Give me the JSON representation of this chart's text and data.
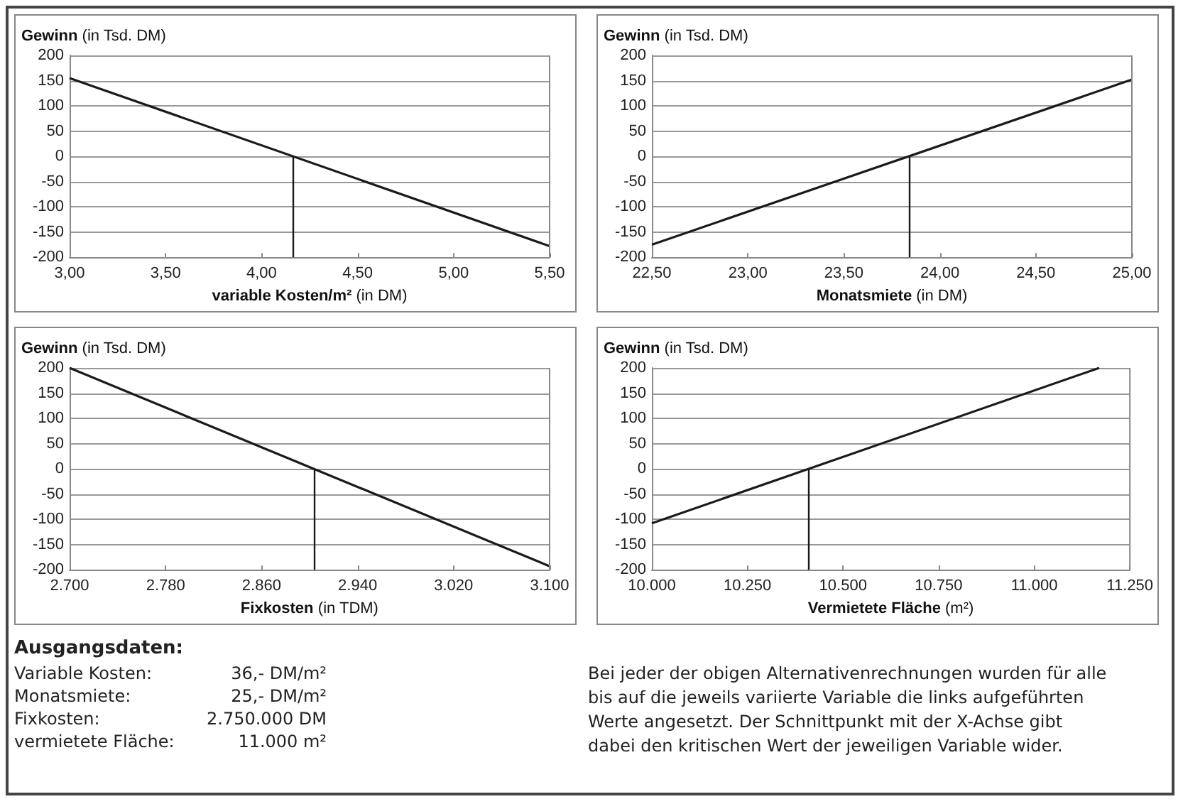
{
  "chart_data": [
    {
      "type": "line",
      "xlabel": "variable Kosten/m² (in DM)",
      "ylabel": "Gewinn (in Tsd. DM)",
      "x": [
        3.0,
        5.5
      ],
      "series": [
        {
          "color": "#1a1a1a",
          "values": [
            155,
            -178
          ]
        }
      ],
      "xlim": [
        3.0,
        5.5
      ],
      "xticks": [
        {
          "value": 3.0,
          "label": "3,00"
        },
        {
          "value": 3.5,
          "label": "3,50"
        },
        {
          "value": 4.0,
          "label": "4,00"
        },
        {
          "value": 4.5,
          "label": "4,50"
        },
        {
          "value": 5.0,
          "label": "5,00"
        },
        {
          "value": 5.5,
          "label": "5,50"
        }
      ],
      "ylim": [
        -200,
        200
      ],
      "yticks": [
        -200,
        -150,
        -100,
        -50,
        0,
        50,
        100,
        150,
        200
      ],
      "grid": "y",
      "marker": "none",
      "ref_lines": [
        {
          "axis": "x",
          "value": 4.16,
          "color": "#1a1a1a"
        }
      ]
    },
    {
      "type": "line",
      "xlabel": "Monatsmiete (in DM)",
      "ylabel": "Gewinn (in Tsd. DM)",
      "x": [
        22.5,
        25.0
      ],
      "series": [
        {
          "color": "#1a1a1a",
          "values": [
            -175,
            152
          ]
        }
      ],
      "xlim": [
        22.5,
        25.0
      ],
      "xticks": [
        {
          "value": 22.5,
          "label": "22,50"
        },
        {
          "value": 23.0,
          "label": "23,00"
        },
        {
          "value": 23.5,
          "label": "23,50"
        },
        {
          "value": 24.0,
          "label": "24,00"
        },
        {
          "value": 24.5,
          "label": "24,50"
        },
        {
          "value": 25.0,
          "label": "25,00"
        }
      ],
      "ylim": [
        -200,
        200
      ],
      "yticks": [
        -200,
        -150,
        -100,
        -50,
        0,
        50,
        100,
        150,
        200
      ],
      "grid": "y",
      "marker": "none",
      "ref_lines": [
        {
          "axis": "x",
          "value": 23.84,
          "color": "#1a1a1a"
        }
      ]
    },
    {
      "type": "line",
      "xlabel": "Fixkosten (in TDM)",
      "ylabel": "Gewinn (in Tsd. DM)",
      "x": [
        2700,
        3100
      ],
      "series": [
        {
          "color": "#1a1a1a",
          "values": [
            200,
            -193
          ]
        }
      ],
      "xlim": [
        2700,
        3100
      ],
      "xticks": [
        {
          "value": 2700,
          "label": "2.700"
        },
        {
          "value": 2780,
          "label": "2.780"
        },
        {
          "value": 2860,
          "label": "2.860"
        },
        {
          "value": 2940,
          "label": "2.940"
        },
        {
          "value": 3020,
          "label": "3.020"
        },
        {
          "value": 3100,
          "label": "3.100"
        }
      ],
      "ylim": [
        -200,
        200
      ],
      "yticks": [
        -200,
        -150,
        -100,
        -50,
        0,
        50,
        100,
        150,
        200
      ],
      "grid": "y",
      "marker": "none",
      "ref_lines": [
        {
          "axis": "x",
          "value": 2904,
          "color": "#1a1a1a"
        }
      ]
    },
    {
      "type": "line",
      "xlabel": "Vermietete Fläche (m²)",
      "ylabel": "Gewinn (in Tsd. DM)",
      "x": [
        10000,
        11170
      ],
      "series": [
        {
          "color": "#1a1a1a",
          "values": [
            -108,
            200
          ]
        }
      ],
      "xlim": [
        10000,
        11250
      ],
      "xticks": [
        {
          "value": 10000,
          "label": "10.000"
        },
        {
          "value": 10250,
          "label": "10.250"
        },
        {
          "value": 10500,
          "label": "10.500"
        },
        {
          "value": 10750,
          "label": "10.750"
        },
        {
          "value": 11000,
          "label": "11.000"
        },
        {
          "value": 11250,
          "label": "11.250"
        }
      ],
      "ylim": [
        -200,
        200
      ],
      "yticks": [
        -200,
        -150,
        -100,
        -50,
        0,
        50,
        100,
        150,
        200
      ],
      "grid": "y",
      "marker": "none",
      "ref_lines": [
        {
          "axis": "x",
          "value": 10410,
          "color": "#1a1a1a"
        }
      ]
    },
    {
      "type": "other",
      "title": "Ausgangsdaten:",
      "annotations": [
        "Variable Kosten:",
        "36,- DM/m²",
        "Monatsmiete:",
        "25,- DM/m²",
        "Fixkosten:",
        "2.750.000 DM",
        "vermietete Fläche:",
        "11.000 m²",
        "Bei jeder der obigen Alternativenrechnungen wurden für alle bis auf die jeweils variierte Variable die links aufgeführten Werte angesetzt. Der Schnittpunkt mit der X-Achse gibt dabei den kritischen Wert der jeweiligen Variable wider."
      ]
    }
  ]
}
